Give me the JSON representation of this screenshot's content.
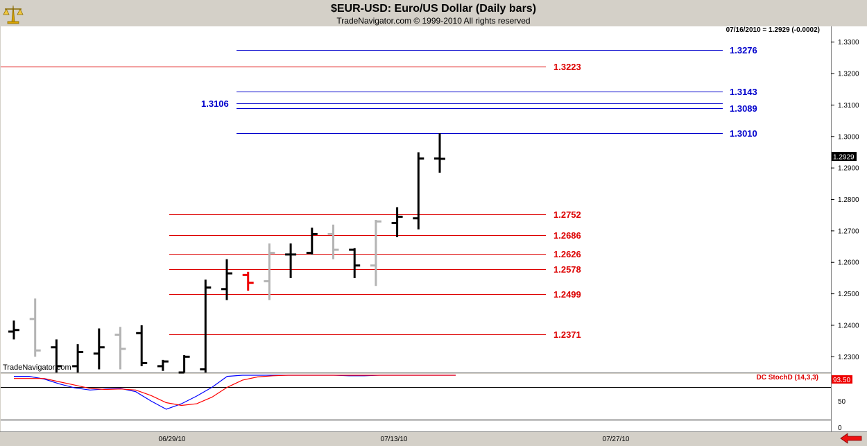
{
  "header": {
    "title": "$EUR-USD:  Euro/US Dollar  (Daily bars)",
    "subtitle": "TradeNavigator.com © 1999-2010 All rights reserved",
    "readout": "07/16/2010 = 1.2929 (-0.0002)",
    "watermark": "TradeNavigator.com",
    "logo_icon": "balance-scale-icon",
    "nav_icon": "left-arrow-icon"
  },
  "colors": {
    "blue_level": "#0000cc",
    "red_level": "#dd0000",
    "up_bar": "#000000",
    "down_bar": "#b4b4b4",
    "current_bar": "#ee0000",
    "stoch_k": "#0000ff",
    "stoch_d": "#ff0000"
  },
  "chart_data": [
    {
      "type": "ohlc",
      "title": "$EUR-USD:  Euro/US Dollar  (Daily bars)",
      "ylim": [
        1.225,
        1.335
      ],
      "y_ticks": [
        "1.2300",
        "1.2400",
        "1.2500",
        "1.2600",
        "1.2700",
        "1.2800",
        "1.2900",
        "1.3000",
        "1.3100",
        "1.3200",
        "1.3300"
      ],
      "x_ticks": [
        "06/29/10",
        "07/13/10",
        "07/27/10"
      ],
      "last_price_label": "1.2929",
      "bars": [
        {
          "o": 1.238,
          "h": 1.2415,
          "l": 1.2355,
          "c": 1.2385,
          "col": "black"
        },
        {
          "o": 1.242,
          "h": 1.2485,
          "l": 1.23,
          "c": 1.232,
          "col": "gray"
        },
        {
          "o": 1.233,
          "h": 1.2355,
          "l": 1.225,
          "c": 1.227,
          "col": "black"
        },
        {
          "o": 1.227,
          "h": 1.234,
          "l": 1.225,
          "c": 1.2315,
          "col": "black"
        },
        {
          "o": 1.231,
          "h": 1.239,
          "l": 1.226,
          "c": 1.233,
          "col": "black"
        },
        {
          "o": 1.237,
          "h": 1.2395,
          "l": 1.226,
          "c": 1.2325,
          "col": "gray"
        },
        {
          "o": 1.2375,
          "h": 1.24,
          "l": 1.227,
          "c": 1.228,
          "col": "black"
        },
        {
          "o": 1.227,
          "h": 1.229,
          "l": 1.2255,
          "c": 1.2285,
          "col": "black"
        },
        {
          "o": 1.225,
          "h": 1.2305,
          "l": 1.223,
          "c": 1.23,
          "col": "black"
        },
        {
          "o": 1.226,
          "h": 1.2545,
          "l": 1.225,
          "c": 1.252,
          "col": "black"
        },
        {
          "o": 1.2515,
          "h": 1.261,
          "l": 1.248,
          "c": 1.2565,
          "col": "black"
        },
        {
          "o": 1.256,
          "h": 1.257,
          "l": 1.251,
          "c": 1.2535,
          "col": "red"
        },
        {
          "o": 1.254,
          "h": 1.266,
          "l": 1.248,
          "c": 1.263,
          "col": "gray"
        },
        {
          "o": 1.2625,
          "h": 1.266,
          "l": 1.255,
          "c": 1.2625,
          "col": "black"
        },
        {
          "o": 1.263,
          "h": 1.271,
          "l": 1.2625,
          "c": 1.269,
          "col": "black"
        },
        {
          "o": 1.269,
          "h": 1.272,
          "l": 1.261,
          "c": 1.264,
          "col": "gray"
        },
        {
          "o": 1.264,
          "h": 1.2645,
          "l": 1.255,
          "c": 1.259,
          "col": "black"
        },
        {
          "o": 1.259,
          "h": 1.2735,
          "l": 1.2525,
          "c": 1.273,
          "col": "gray"
        },
        {
          "o": 1.2725,
          "h": 1.2775,
          "l": 1.268,
          "c": 1.2745,
          "col": "black"
        },
        {
          "o": 1.274,
          "h": 1.295,
          "l": 1.2705,
          "c": 1.293,
          "col": "black"
        },
        {
          "o": 1.293,
          "h": 1.301,
          "l": 1.2885,
          "c": 1.2929,
          "col": "black"
        }
      ],
      "levels": [
        {
          "value": 1.3276,
          "label": "1.3276",
          "color": "blue",
          "span": "mid"
        },
        {
          "value": 1.3223,
          "label": "1.3223",
          "color": "red",
          "span": "full"
        },
        {
          "value": 1.3143,
          "label": "1.3143",
          "color": "blue",
          "span": "mid"
        },
        {
          "value": 1.3106,
          "label": "1.3106",
          "color": "blue",
          "span": "mid",
          "label_side": "left"
        },
        {
          "value": 1.3089,
          "label": "1.3089",
          "color": "blue",
          "span": "mid"
        },
        {
          "value": 1.301,
          "label": "1.3010",
          "color": "blue",
          "span": "mid"
        },
        {
          "value": 1.2752,
          "label": "1.2752",
          "color": "red",
          "span": "short"
        },
        {
          "value": 1.2686,
          "label": "1.2686",
          "color": "red",
          "span": "short"
        },
        {
          "value": 1.2626,
          "label": "1.2626",
          "color": "red",
          "span": "short"
        },
        {
          "value": 1.2578,
          "label": "1.2578",
          "color": "red",
          "span": "short"
        },
        {
          "value": 1.2499,
          "label": "1.2499",
          "color": "red",
          "span": "short"
        },
        {
          "value": 1.2371,
          "label": "1.2371",
          "color": "red",
          "span": "short"
        }
      ]
    },
    {
      "type": "line",
      "title": "DC StochD (14,3,3)",
      "ylim": [
        0,
        100
      ],
      "y_ticks": [
        "0",
        "50"
      ],
      "last_value_label": "93.50",
      "series": [
        {
          "color": "blue",
          "values": [
            98,
            98,
            93,
            84,
            77,
            73,
            75,
            76,
            70,
            53,
            38,
            48,
            62,
            78,
            98,
            100,
            100,
            100,
            101,
            100,
            100,
            100,
            99,
            99,
            100,
            100,
            100,
            103,
            100,
            100
          ]
        },
        {
          "color": "red",
          "values": [
            94,
            94,
            94,
            88,
            82,
            76,
            74,
            75,
            73,
            63,
            50,
            45,
            48,
            60,
            78,
            91,
            97,
            99,
            100,
            100,
            100,
            100,
            100,
            100,
            100,
            100,
            100,
            100,
            101,
            101
          ]
        }
      ]
    }
  ]
}
